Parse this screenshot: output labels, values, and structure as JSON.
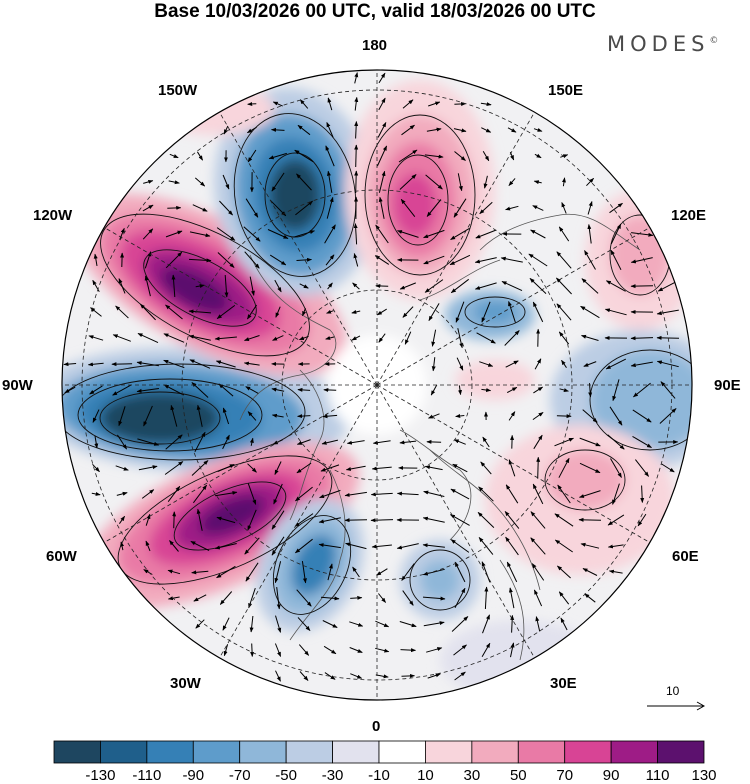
{
  "header": {
    "title": "Base 10/03/2026 00 UTC, valid 18/03/2026 00 UTC",
    "brand": "MODES",
    "brand_mark": "©"
  },
  "map": {
    "projection": "north-polar-stereographic",
    "longitude_labels": {
      "n180": "180",
      "e150": "150E",
      "e120": "120E",
      "e90": "90E",
      "e60": "60E",
      "e30": "30E",
      "zero": "0",
      "w30": "30W",
      "w60": "60W",
      "w90": "90W",
      "w120": "120W",
      "w150": "150W"
    },
    "vector_scale": {
      "label": "10"
    },
    "colors": {
      "coast": "#555555",
      "grid": "#222222",
      "contour": "#111111"
    }
  },
  "colorbar": {
    "ticks": [
      "-130",
      "-110",
      "-90",
      "-70",
      "-50",
      "-30",
      "-10",
      "10",
      "30",
      "50",
      "70",
      "90",
      "110",
      "130"
    ],
    "colors": [
      "#1e4660",
      "#1f5f8b",
      "#3580b6",
      "#5e9ccb",
      "#8fb7d9",
      "#bccde4",
      "#e2e2ee",
      "#ffffff",
      "#f8d5dc",
      "#f2abbe",
      "#e97aa6",
      "#d84495",
      "#9e1c86",
      "#5c116e"
    ]
  }
}
